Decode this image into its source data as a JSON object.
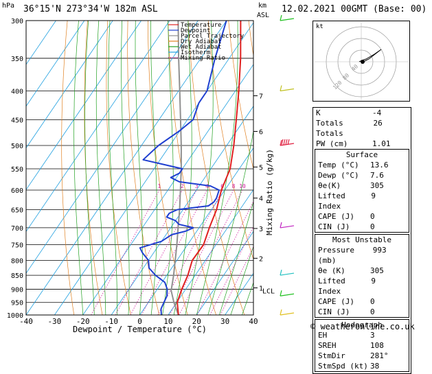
{
  "header": {
    "location": "36°15'N  273°34'W  182m  ASL",
    "datetime": "12.02.2021  00GMT  (Base: 00)",
    "p_unit": "hPa",
    "km_unit": "km",
    "asl_unit": "ASL"
  },
  "chart_data": {
    "type": "line",
    "xlabel": "Dewpoint / Temperature (°C)",
    "ylabel_right": "Mixing Ratio (g/kg)",
    "xlim": [
      -40,
      40
    ],
    "ylim_hpa": [
      1000,
      300
    ],
    "y_log_scale": true,
    "x_ticks": [
      "-40",
      "-30",
      "-20",
      "-10",
      "0",
      "10",
      "20",
      "30",
      "40"
    ],
    "pressure_ticks": [
      "300",
      "350",
      "400",
      "450",
      "500",
      "550",
      "600",
      "650",
      "700",
      "750",
      "800",
      "850",
      "900",
      "950",
      "1000"
    ],
    "km_ticks": [
      {
        "label": "7",
        "p": 408
      },
      {
        "label": "6",
        "p": 472
      },
      {
        "label": "5",
        "p": 546
      },
      {
        "label": "4",
        "p": 620
      },
      {
        "label": "3",
        "p": 702
      },
      {
        "label": "2",
        "p": 793
      },
      {
        "label": "1",
        "p": 895
      },
      {
        "label": "LCL",
        "p": 905
      }
    ],
    "mixing_ratio_labels": [
      "1",
      "2",
      "3",
      "4",
      "6",
      "8",
      "10",
      "15",
      "20",
      "25"
    ],
    "mixing_ratio_values": [
      1,
      2,
      3,
      4,
      6,
      8,
      10,
      15,
      20,
      25
    ],
    "legend": [
      "Temperature",
      "Dewpoint",
      "Parcel Trajectory",
      "Dry Adiabat",
      "Wet Adiabat",
      "Isotherm",
      "Mixing Ratio"
    ],
    "legend_colors": [
      "#e02020",
      "#1f3fd0",
      "#909090",
      "#e08020",
      "#20a020",
      "#20a0e0",
      "#d020a0"
    ],
    "series": [
      {
        "name": "Temperature",
        "p": [
          1000,
          950,
          900,
          850,
          800,
          750,
          700,
          650,
          600,
          550,
          500,
          450,
          400,
          350,
          300
        ],
        "t": [
          13.6,
          10.2,
          8.6,
          7.4,
          5.4,
          5.6,
          3.6,
          1.8,
          -1.2,
          -3.2,
          -7.5,
          -12.8,
          -18.8,
          -26,
          -35
        ]
      },
      {
        "name": "Dewpoint",
        "p": [
          1000,
          975,
          950,
          925,
          900,
          875,
          850,
          825,
          800,
          775,
          760,
          740,
          720,
          710,
          700,
          690,
          680,
          670,
          660,
          650,
          640,
          630,
          620,
          610,
          600,
          590,
          580,
          570,
          560,
          550,
          540,
          530,
          500,
          470,
          450,
          420,
          400,
          350,
          300
        ],
        "t": [
          7.6,
          6,
          5.5,
          5,
          3.5,
          1,
          -4,
          -8,
          -10,
          -14,
          -16,
          -10,
          -8,
          -4,
          -2,
          -8,
          -10,
          -14,
          -14,
          -12,
          -2,
          -1,
          -1,
          -1.5,
          -2,
          -6,
          -18,
          -22,
          -20,
          -20,
          -28,
          -36,
          -34,
          -30,
          -28,
          -30,
          -30,
          -35,
          -40
        ]
      },
      {
        "name": "Parcel Trajectory",
        "p": [
          1000,
          950,
          905,
          850,
          800,
          750,
          700,
          650,
          600,
          550,
          500,
          450,
          400,
          350,
          300
        ],
        "t": [
          13.6,
          9,
          5.2,
          2.4,
          -0.6,
          -3.8,
          -7.4,
          -11.2,
          -15.6,
          -20.4,
          -26,
          -32.4,
          -39.6,
          -47.8,
          -57
        ]
      }
    ]
  },
  "hodograph": {
    "unit": "kt",
    "ring_labels": [
      "40",
      "80",
      "120"
    ]
  },
  "wind_barbs_colors": [
    "#20c020",
    "#c0c020",
    "#e02040",
    "#c020c0",
    "#20c0c0",
    "#20c020",
    "#e0c020"
  ],
  "indices": {
    "rows": [
      {
        "label": "K",
        "value": "-4"
      },
      {
        "label": "Totals Totals",
        "value": "26"
      },
      {
        "label": "PW (cm)",
        "value": "1.01"
      }
    ]
  },
  "surface": {
    "title": "Surface",
    "rows": [
      {
        "label": "Temp (°C)",
        "value": "13.6"
      },
      {
        "label": "Dewp (°C)",
        "value": "7.6"
      },
      {
        "label": "θe(K)",
        "value": "305"
      },
      {
        "label": "Lifted Index",
        "value": "9"
      },
      {
        "label": "CAPE (J)",
        "value": "0"
      },
      {
        "label": "CIN (J)",
        "value": "0"
      }
    ]
  },
  "most_unstable": {
    "title": "Most Unstable",
    "rows": [
      {
        "label": "Pressure (mb)",
        "value": "993"
      },
      {
        "label": "θe (K)",
        "value": "305"
      },
      {
        "label": "Lifted Index",
        "value": "9"
      },
      {
        "label": "CAPE (J)",
        "value": "0"
      },
      {
        "label": "CIN (J)",
        "value": "0"
      }
    ]
  },
  "hodograph_table": {
    "title": "Hodograph",
    "rows": [
      {
        "label": "EH",
        "value": "3"
      },
      {
        "label": "SREH",
        "value": "108"
      },
      {
        "label": "StmDir",
        "value": "281°"
      },
      {
        "label": "StmSpd (kt)",
        "value": "38"
      }
    ]
  },
  "footer": "© weatheronline.co.uk"
}
